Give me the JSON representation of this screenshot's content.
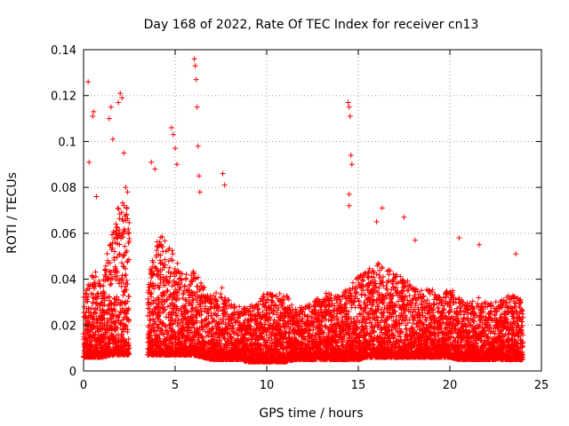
{
  "chart_data": {
    "type": "scatter",
    "title": "Day 168 of 2022, Rate Of TEC Index for receiver cn13",
    "xlabel": "GPS time / hours",
    "ylabel": "ROTI / TECUs",
    "xlim": [
      0,
      25
    ],
    "ylim": [
      0,
      0.14
    ],
    "x_ticks": [
      "0",
      "5",
      "10",
      "15",
      "20",
      "25"
    ],
    "y_ticks": [
      "0",
      "0.02",
      "0.04",
      "0.06",
      "0.08",
      "0.1",
      "0.12",
      "0.14"
    ],
    "grid": true,
    "marker": "+",
    "color": "#ff0000",
    "series": [
      {
        "name": "ROTI",
        "points": [
          [
            0.25,
            0.126
          ],
          [
            0.3,
            0.091
          ],
          [
            0.5,
            0.111
          ],
          [
            0.55,
            0.113
          ],
          [
            0.7,
            0.076
          ],
          [
            1.4,
            0.11
          ],
          [
            1.5,
            0.115
          ],
          [
            1.6,
            0.101
          ],
          [
            1.9,
            0.117
          ],
          [
            2.0,
            0.121
          ],
          [
            2.1,
            0.119
          ],
          [
            2.2,
            0.095
          ],
          [
            2.3,
            0.08
          ],
          [
            2.4,
            0.078
          ],
          [
            3.7,
            0.091
          ],
          [
            3.9,
            0.088
          ],
          [
            4.8,
            0.106
          ],
          [
            4.9,
            0.103
          ],
          [
            5.0,
            0.097
          ],
          [
            5.1,
            0.09
          ],
          [
            6.05,
            0.136
          ],
          [
            6.1,
            0.133
          ],
          [
            6.15,
            0.127
          ],
          [
            6.2,
            0.115
          ],
          [
            6.25,
            0.098
          ],
          [
            6.3,
            0.085
          ],
          [
            6.35,
            0.078
          ],
          [
            7.6,
            0.086
          ],
          [
            7.7,
            0.081
          ],
          [
            14.45,
            0.117
          ],
          [
            14.5,
            0.115
          ],
          [
            14.55,
            0.111
          ],
          [
            14.6,
            0.094
          ],
          [
            14.65,
            0.09
          ],
          [
            14.5,
            0.077
          ],
          [
            14.5,
            0.072
          ],
          [
            16.3,
            0.071
          ],
          [
            16.0,
            0.065
          ],
          [
            17.5,
            0.067
          ],
          [
            18.1,
            0.057
          ],
          [
            20.5,
            0.058
          ],
          [
            21.6,
            0.055
          ],
          [
            23.6,
            0.051
          ]
        ]
      }
    ],
    "envelope": {
      "x": [
        0,
        0.5,
        1.0,
        1.5,
        2.0,
        2.5,
        3.5,
        4.0,
        4.5,
        5.0,
        5.5,
        6.0,
        6.5,
        7.0,
        7.5,
        8.0,
        8.5,
        9.0,
        9.5,
        10.0,
        10.5,
        11.0,
        11.5,
        12.0,
        12.5,
        13.0,
        13.5,
        14.0,
        14.5,
        15.0,
        15.5,
        16.0,
        16.5,
        17.0,
        17.5,
        18.0,
        18.5,
        19.0,
        19.5,
        20.0,
        20.5,
        21.0,
        21.5,
        22.0,
        22.5,
        23.0,
        23.5,
        24.0
      ],
      "typical_max": [
        0.032,
        0.045,
        0.04,
        0.06,
        0.075,
        0.07,
        0.04,
        0.06,
        0.058,
        0.05,
        0.042,
        0.045,
        0.038,
        0.033,
        0.038,
        0.03,
        0.028,
        0.028,
        0.03,
        0.035,
        0.033,
        0.035,
        0.028,
        0.028,
        0.03,
        0.033,
        0.035,
        0.035,
        0.036,
        0.042,
        0.044,
        0.048,
        0.045,
        0.043,
        0.04,
        0.038,
        0.035,
        0.036,
        0.033,
        0.036,
        0.033,
        0.03,
        0.033,
        0.03,
        0.03,
        0.032,
        0.034,
        0.03
      ],
      "typical_min": [
        0.006,
        0.006,
        0.006,
        0.007,
        0.007,
        0.007,
        0.007,
        0.007,
        0.007,
        0.007,
        0.007,
        0.007,
        0.006,
        0.005,
        0.005,
        0.005,
        0.005,
        0.004,
        0.004,
        0.004,
        0.004,
        0.004,
        0.005,
        0.005,
        0.005,
        0.005,
        0.005,
        0.005,
        0.005,
        0.005,
        0.006,
        0.006,
        0.006,
        0.006,
        0.006,
        0.006,
        0.006,
        0.006,
        0.006,
        0.006,
        0.005,
        0.005,
        0.005,
        0.005,
        0.005,
        0.005,
        0.005,
        0.005
      ]
    },
    "gaps_hours": [
      [
        2.5,
        3.5
      ]
    ],
    "data_extent_hours": [
      0,
      24
    ]
  }
}
